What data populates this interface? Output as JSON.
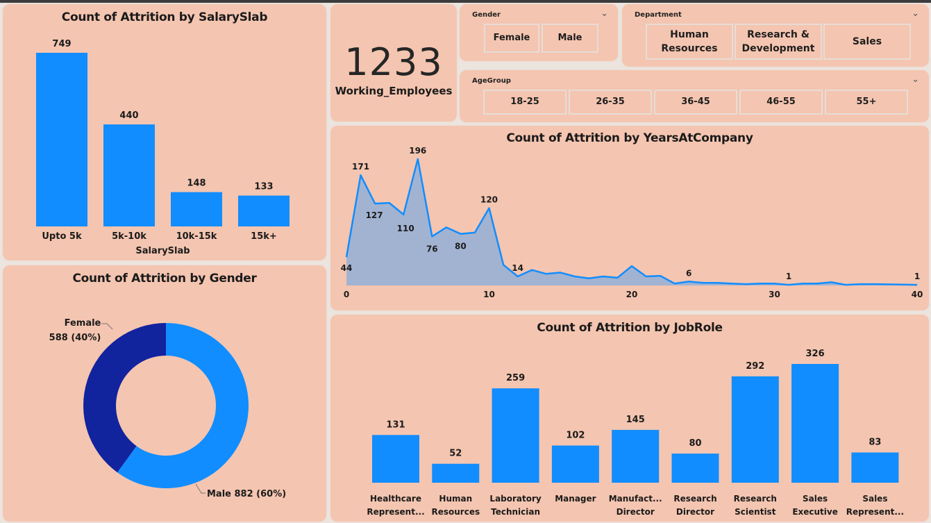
{
  "kpi": {
    "value": "1233",
    "label": "Working_Employees"
  },
  "slicers": {
    "gender": {
      "title": "Gender",
      "options": [
        "Female",
        "Male"
      ]
    },
    "department": {
      "title": "Department",
      "options": [
        "Human Resources",
        "Research & Development",
        "Sales"
      ]
    },
    "agegroup": {
      "title": "AgeGroup",
      "options": [
        "18-25",
        "26-35",
        "36-45",
        "46-55",
        "55+"
      ]
    }
  },
  "colors": {
    "bar": "#118dff",
    "female": "#12239e",
    "area_fill": "#9db2d4",
    "card_bg": "#f4c5b0"
  },
  "chart_data": [
    {
      "type": "bar",
      "title": "Count of Attrition by SalarySlab",
      "xlabel": "SalarySlab",
      "ylabel": "",
      "categories": [
        "Upto 5k",
        "5k-10k",
        "10k-15k",
        "15k+"
      ],
      "values": [
        749,
        440,
        148,
        133
      ],
      "ylim": [
        0,
        749
      ]
    },
    {
      "type": "pie",
      "title": "Count of Attrition by Gender",
      "slices": [
        {
          "name": "Female",
          "value": 588,
          "label": "588 (40%)"
        },
        {
          "name": "Male",
          "value": 882,
          "label": "Male 882 (60%)"
        }
      ]
    },
    {
      "type": "area",
      "title": "Count of Attrition by YearsAtCompany",
      "x": [
        0,
        1,
        2,
        3,
        4,
        5,
        6,
        7,
        8,
        9,
        10,
        11,
        12,
        13,
        14,
        15,
        16,
        17,
        18,
        19,
        20,
        21,
        22,
        23,
        24,
        25,
        26,
        27,
        28,
        29,
        30,
        31,
        32,
        33,
        34,
        35,
        36,
        37,
        40
      ],
      "y": [
        44,
        171,
        127,
        128,
        110,
        196,
        76,
        90,
        80,
        82,
        120,
        32,
        14,
        24,
        18,
        20,
        14,
        11,
        14,
        12,
        30,
        14,
        15,
        3,
        6,
        4,
        4,
        3,
        2,
        3,
        3,
        1,
        3,
        3,
        5,
        1,
        2,
        2,
        1
      ],
      "labeled_points": [
        {
          "x": 0,
          "label": "44"
        },
        {
          "x": 1,
          "label": "171"
        },
        {
          "x": 2,
          "label": "127"
        },
        {
          "x": 4,
          "label": "110"
        },
        {
          "x": 5,
          "label": "196"
        },
        {
          "x": 6,
          "label": "76"
        },
        {
          "x": 8,
          "label": "80"
        },
        {
          "x": 10,
          "label": "120"
        },
        {
          "x": 12,
          "label": "14"
        },
        {
          "x": 24,
          "label": "6"
        },
        {
          "x": 31,
          "label": "1"
        },
        {
          "x": 40,
          "label": "1"
        }
      ],
      "xticks": [
        "0",
        "10",
        "20",
        "30",
        "40"
      ],
      "xlim": [
        0,
        40
      ],
      "ylim": [
        0,
        196
      ]
    },
    {
      "type": "bar",
      "title": "Count of Attrition by JobRole",
      "categories": [
        [
          "Healthcare",
          "Represent..."
        ],
        [
          "Human",
          "Resources"
        ],
        [
          "Laboratory",
          "Technician"
        ],
        [
          "Manager",
          ""
        ],
        [
          "Manufact...",
          "Director"
        ],
        [
          "Research",
          "Director"
        ],
        [
          "Research",
          "Scientist"
        ],
        [
          "Sales",
          "Executive"
        ],
        [
          "Sales",
          "Represent..."
        ]
      ],
      "values": [
        131,
        52,
        259,
        102,
        145,
        80,
        292,
        326,
        83
      ],
      "ylim": [
        0,
        326
      ]
    }
  ]
}
